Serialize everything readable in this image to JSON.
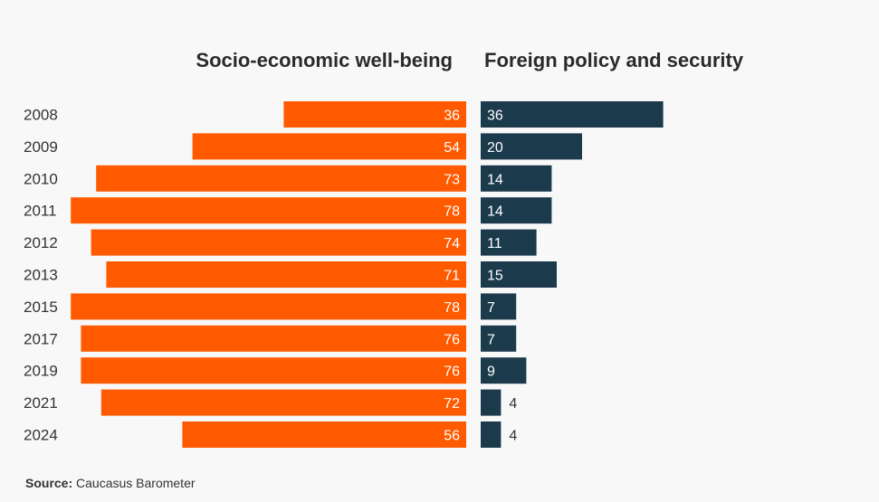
{
  "chart_data": {
    "type": "bar",
    "orientation": "horizontal-butterfly",
    "categories": [
      "2008",
      "2009",
      "2010",
      "2011",
      "2012",
      "2013",
      "2015",
      "2017",
      "2019",
      "2021",
      "2024"
    ],
    "series": [
      {
        "name": "Socio-economic well-being",
        "color": "#ff5a00",
        "direction": "left",
        "values": [
          36,
          54,
          73,
          78,
          74,
          71,
          78,
          76,
          76,
          72,
          56
        ]
      },
      {
        "name": "Foreign policy and security",
        "color": "#1b3a4b",
        "direction": "right",
        "values": [
          36,
          20,
          14,
          14,
          11,
          15,
          7,
          7,
          9,
          4,
          4
        ]
      }
    ],
    "data_labels": true,
    "grid": false
  },
  "source": {
    "label": "Source:",
    "text": " Caucasus Barometer"
  }
}
